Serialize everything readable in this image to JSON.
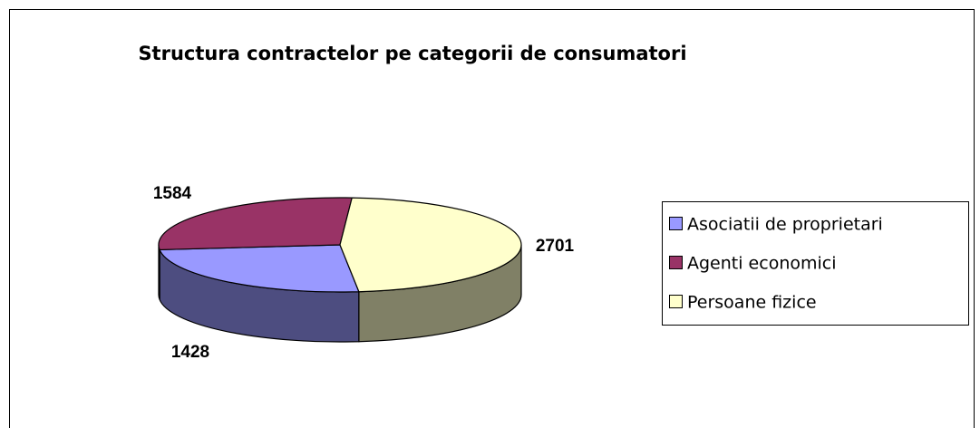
{
  "chart_data": {
    "type": "pie3d",
    "title": "Structura contractelor pe categorii de consumatori",
    "categories": [
      "Asociatii de proprietari",
      "Agenti economici",
      "Persoane fizice"
    ],
    "values": [
      1428,
      1584,
      2701
    ],
    "colors": [
      "#9999ff",
      "#993366",
      "#ffffcc"
    ],
    "legend": "right"
  }
}
